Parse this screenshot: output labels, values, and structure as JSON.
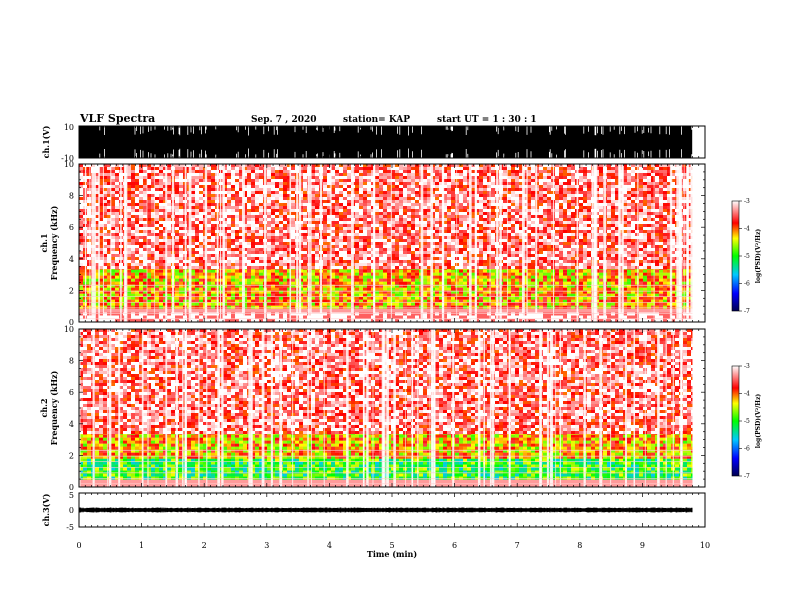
{
  "header": {
    "title": "VLF Spectra",
    "date": "Sep. 7 , 2020",
    "station": "station= KAP",
    "start": "start UT = 1 : 30 : 1"
  },
  "chart_data": [
    {
      "type": "line",
      "name": "ch1-waveform",
      "ylabel": "ch.1(V)",
      "ylim": [
        -10,
        10
      ],
      "yticks": [
        "10",
        "-10"
      ],
      "xlim": [
        0,
        10
      ],
      "trace_color": "#000000"
    },
    {
      "type": "heatmap",
      "name": "ch1-spectrogram",
      "ylabel": "ch.1 Frequency (kHz)",
      "ylabel_line1": "ch.1",
      "ylabel_line2": "Frequency (kHz)",
      "ylim": [
        0,
        10
      ],
      "yticks": [
        "0",
        "2",
        "4",
        "6",
        "8",
        "10"
      ],
      "xlim": [
        0,
        9.8
      ],
      "colorbar": {
        "label": "log(PSD)(V²/Hz)",
        "ticks": [
          "-3",
          "-4",
          "-5",
          "-6",
          "-7"
        ],
        "range": [
          -7,
          -3
        ],
        "colors": [
          "#000060",
          "#0000ff",
          "#00c8ff",
          "#00ff00",
          "#ffff00",
          "#ff0000",
          "#ffffff"
        ]
      },
      "bands": [
        {
          "from_khz": 0.0,
          "to_khz": 0.6,
          "level": "white-lines"
        },
        {
          "from_khz": 1.0,
          "to_khz": 3.5,
          "level": -4.2
        },
        {
          "from_khz": 3.5,
          "to_khz": 10.0,
          "level": -3.4
        }
      ]
    },
    {
      "type": "heatmap",
      "name": "ch2-spectrogram",
      "ylabel": "ch.2 Frequency (kHz)",
      "ylabel_line1": "ch.2",
      "ylabel_line2": "Frequency (kHz)",
      "ylim": [
        0,
        10
      ],
      "yticks": [
        "0",
        "2",
        "4",
        "6",
        "8",
        "10"
      ],
      "xlim": [
        0,
        9.8
      ],
      "colorbar": {
        "label": "log(PSD)(V²/Hz)",
        "ticks": [
          "-3",
          "-4",
          "-5",
          "-6",
          "-7"
        ],
        "range": [
          -7,
          -3
        ],
        "colors": [
          "#000060",
          "#0000ff",
          "#00c8ff",
          "#00ff00",
          "#ffff00",
          "#ff0000",
          "#ffffff"
        ]
      },
      "bands": [
        {
          "from_khz": 0.5,
          "to_khz": 1.8,
          "level": -5.0
        },
        {
          "from_khz": 1.8,
          "to_khz": 3.5,
          "level": -4.2
        },
        {
          "from_khz": 3.5,
          "to_khz": 10.0,
          "level": -3.4
        }
      ]
    },
    {
      "type": "line",
      "name": "ch3-waveform",
      "ylabel": "ch.3(V)",
      "ylim": [
        -5,
        5
      ],
      "yticks": [
        "5",
        "0",
        "-5"
      ],
      "xlim": [
        0,
        9.8
      ],
      "trace_color": "#000000"
    }
  ],
  "xaxis": {
    "label": "Time (min)",
    "ticks": [
      "0",
      "1",
      "2",
      "3",
      "4",
      "5",
      "6",
      "7",
      "8",
      "9",
      "10"
    ],
    "range": [
      0,
      10
    ]
  }
}
